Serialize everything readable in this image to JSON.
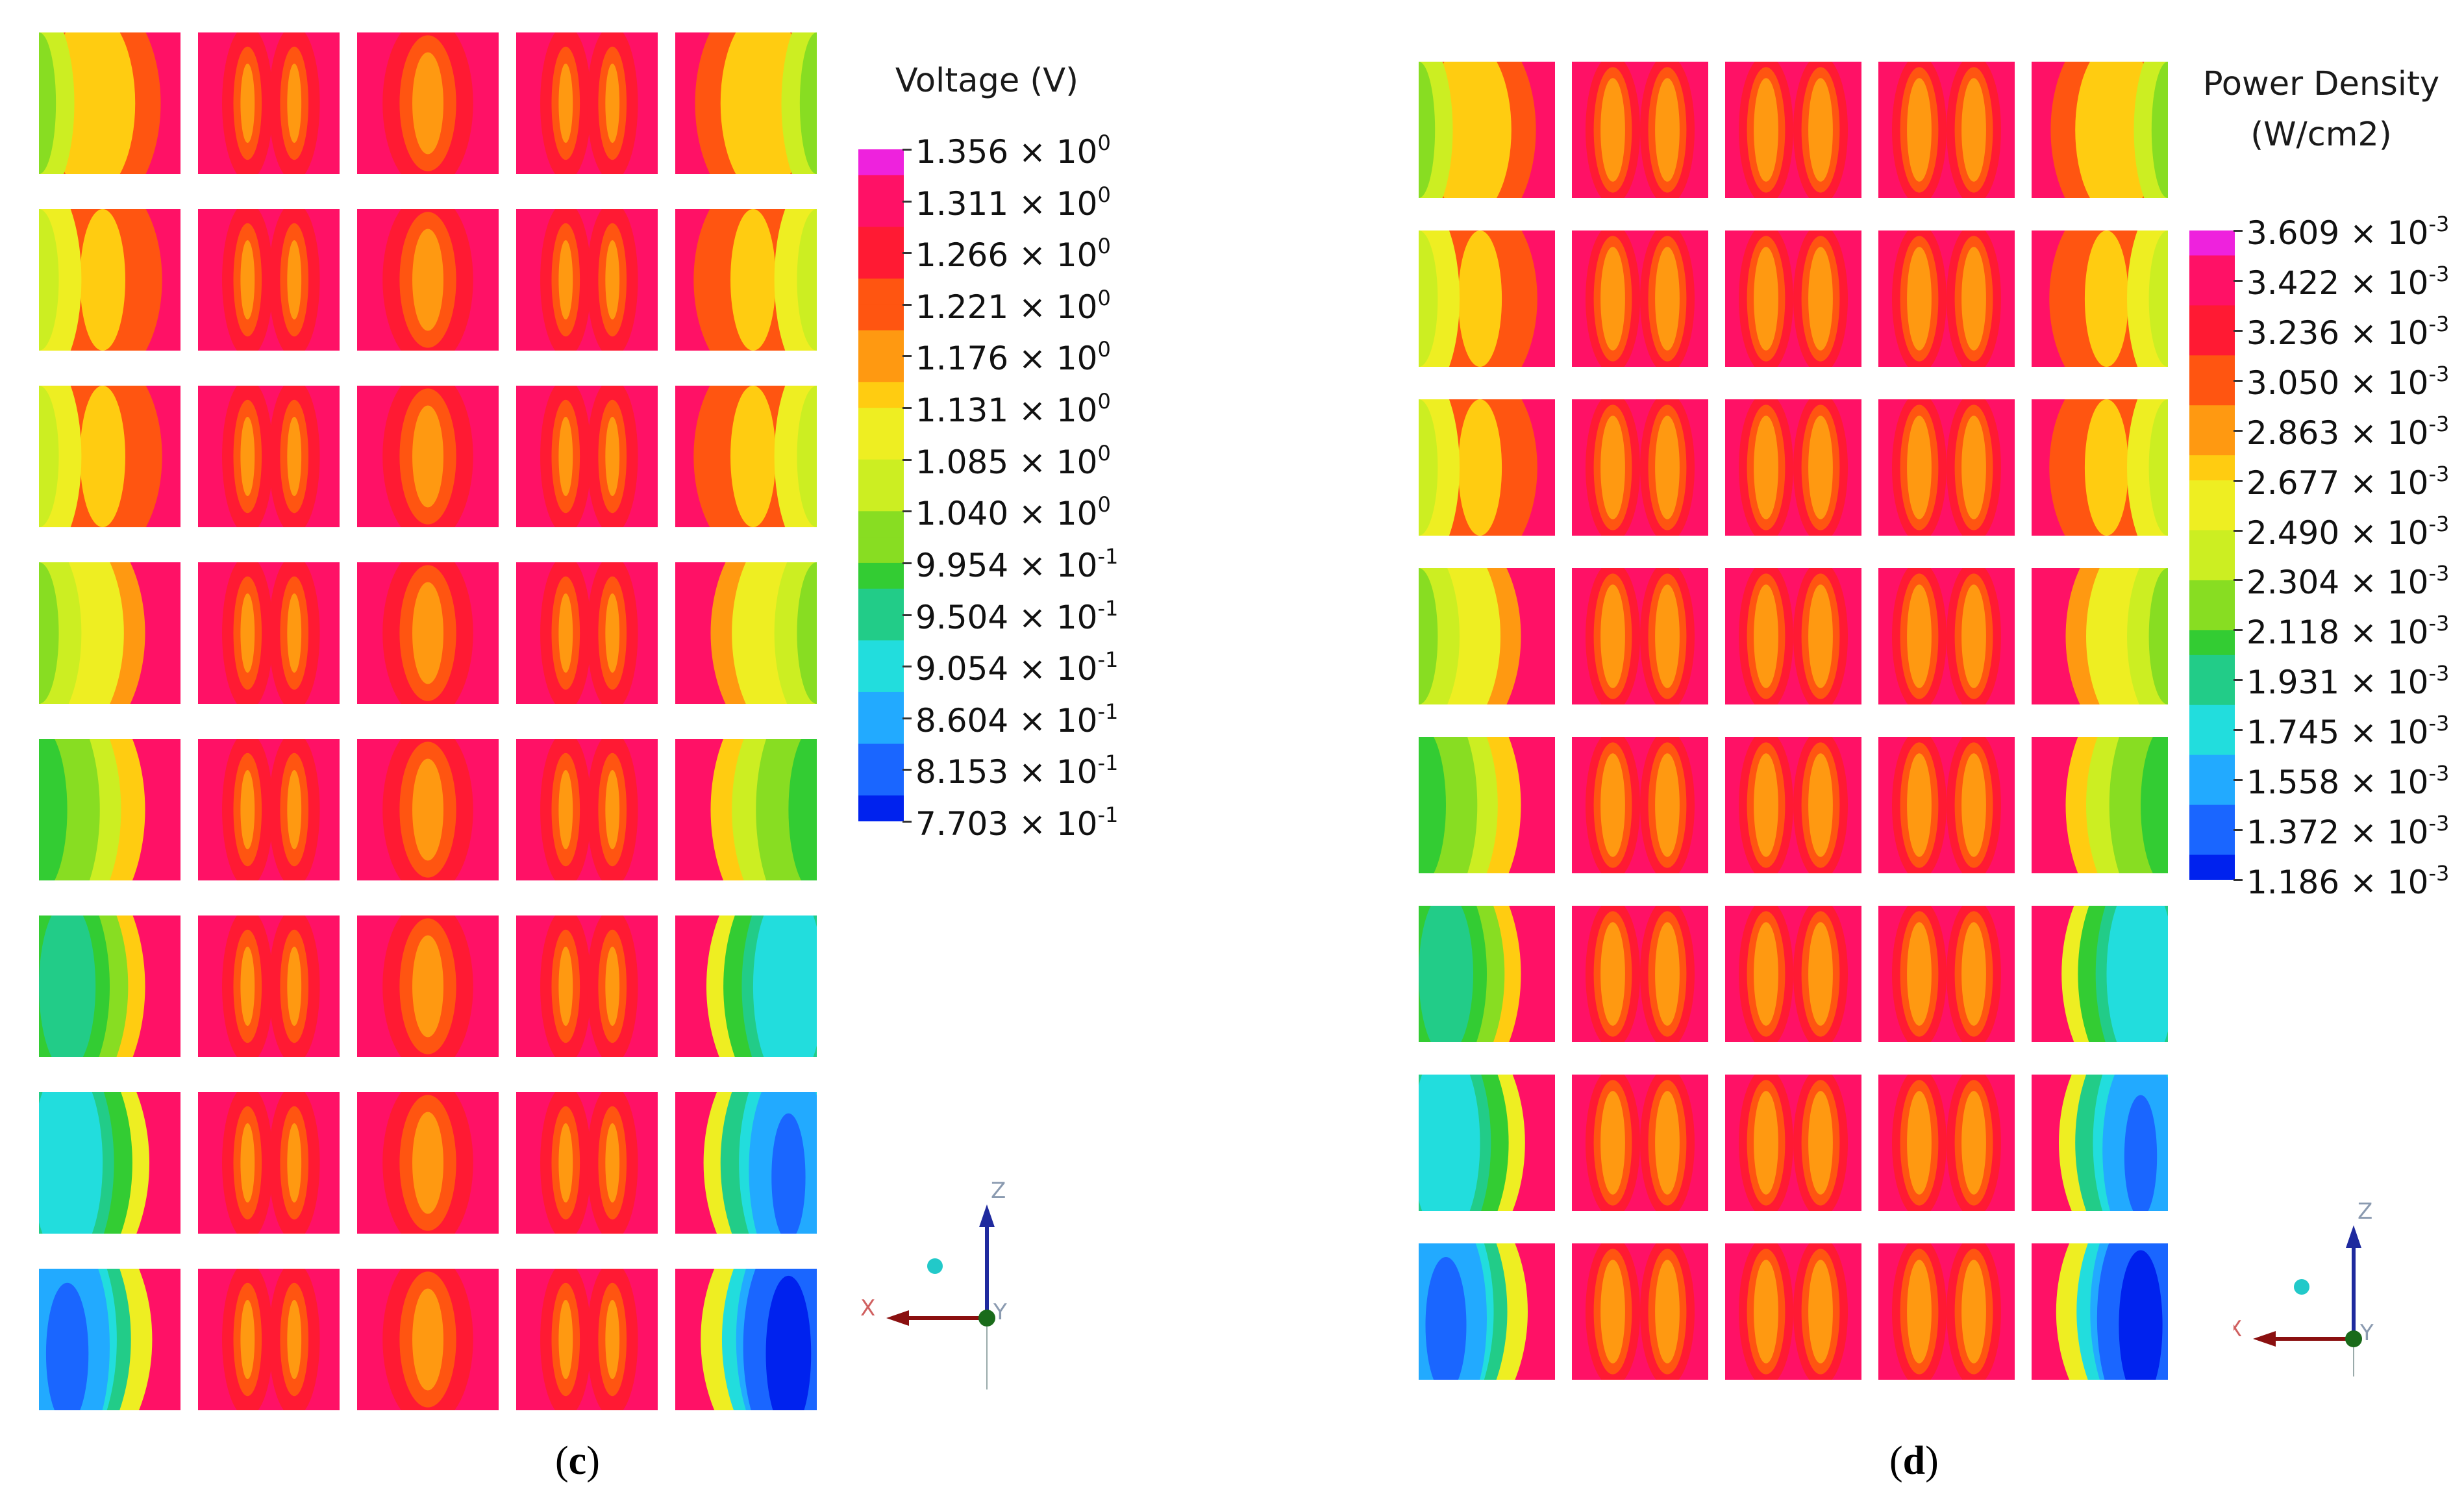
{
  "panels": [
    {
      "id": "c",
      "caption_open": "(",
      "caption_letter": "c",
      "caption_close": ")",
      "legend_title_lines": [
        "Voltage (V)"
      ],
      "legend_ticks": [
        {
          "mantissa": "1.356 × 10",
          "exp": "0"
        },
        {
          "mantissa": "1.311 × 10",
          "exp": "0"
        },
        {
          "mantissa": "1.266 × 10",
          "exp": "0"
        },
        {
          "mantissa": "1.221 × 10",
          "exp": "0"
        },
        {
          "mantissa": "1.176 × 10",
          "exp": "0"
        },
        {
          "mantissa": "1.131 × 10",
          "exp": "0"
        },
        {
          "mantissa": "1.085 × 10",
          "exp": "0"
        },
        {
          "mantissa": "1.040 × 10",
          "exp": "0"
        },
        {
          "mantissa": "9.954 × 10",
          "exp": "-1"
        },
        {
          "mantissa": "9.504 × 10",
          "exp": "-1"
        },
        {
          "mantissa": "9.054 × 10",
          "exp": "-1"
        },
        {
          "mantissa": "8.604 × 10",
          "exp": "-1"
        },
        {
          "mantissa": "8.153 × 10",
          "exp": "-1"
        },
        {
          "mantissa": "7.703 × 10",
          "exp": "-1"
        }
      ],
      "axes": {
        "x": "X",
        "y": "Y",
        "z": "Z"
      },
      "rows": [
        [
          "L1",
          "P2",
          "P1",
          "P2",
          "R1"
        ],
        [
          "L2",
          "P2",
          "P1",
          "P2",
          "R2"
        ],
        [
          "L2",
          "P2",
          "P1",
          "P2",
          "R2"
        ],
        [
          "L3",
          "P2",
          "P1",
          "P2",
          "R3"
        ],
        [
          "L4",
          "P2",
          "P1",
          "P2",
          "R4"
        ],
        [
          "L5",
          "P2",
          "P1",
          "P2",
          "R5"
        ],
        [
          "L6",
          "P2",
          "P1",
          "P2",
          "R6"
        ],
        [
          "L7",
          "P2",
          "P1",
          "P2",
          "R7"
        ]
      ]
    },
    {
      "id": "d",
      "caption_open": "(",
      "caption_letter": "d",
      "caption_close": ")",
      "legend_title_lines": [
        "Power Density",
        "(W/cm2)"
      ],
      "legend_ticks": [
        {
          "mantissa": "3.609 × 10",
          "exp": "-3"
        },
        {
          "mantissa": "3.422 × 10",
          "exp": "-3"
        },
        {
          "mantissa": "3.236 × 10",
          "exp": "-3"
        },
        {
          "mantissa": "3.050 × 10",
          "exp": "-3"
        },
        {
          "mantissa": "2.863 × 10",
          "exp": "-3"
        },
        {
          "mantissa": "2.677 × 10",
          "exp": "-3"
        },
        {
          "mantissa": "2.490 × 10",
          "exp": "-3"
        },
        {
          "mantissa": "2.304 × 10",
          "exp": "-3"
        },
        {
          "mantissa": "2.118 × 10",
          "exp": "-3"
        },
        {
          "mantissa": "1.931 × 10",
          "exp": "-3"
        },
        {
          "mantissa": "1.745 × 10",
          "exp": "-3"
        },
        {
          "mantissa": "1.558 × 10",
          "exp": "-3"
        },
        {
          "mantissa": "1.372 × 10",
          "exp": "-3"
        },
        {
          "mantissa": "1.186 × 10",
          "exp": "-3"
        }
      ],
      "axes": {
        "x": "X",
        "y": "Y",
        "z": "Z"
      },
      "rows": [
        [
          "L1",
          "P3",
          "P3",
          "P3",
          "R1"
        ],
        [
          "L2",
          "P3",
          "P3",
          "P3",
          "R2"
        ],
        [
          "L2",
          "P3",
          "P3",
          "P3",
          "R2"
        ],
        [
          "L3",
          "P3",
          "P3",
          "P3",
          "R3"
        ],
        [
          "L4",
          "P3",
          "P3",
          "P3",
          "R4"
        ],
        [
          "L5",
          "P3",
          "P3",
          "P3",
          "R5"
        ],
        [
          "L6",
          "P3",
          "P3",
          "P3",
          "R6"
        ],
        [
          "L7",
          "P3",
          "P3",
          "P3",
          "R7"
        ]
      ]
    }
  ],
  "colormap": [
    "#0022ee",
    "#1a66ff",
    "#22aaff",
    "#22dddd",
    "#22cc88",
    "#33cc33",
    "#88dd22",
    "#ccee22",
    "#eeee22",
    "#ffcc11",
    "#ff9911",
    "#ff5511",
    "#ff1a33",
    "#ff1166",
    "#ee22dd"
  ]
}
